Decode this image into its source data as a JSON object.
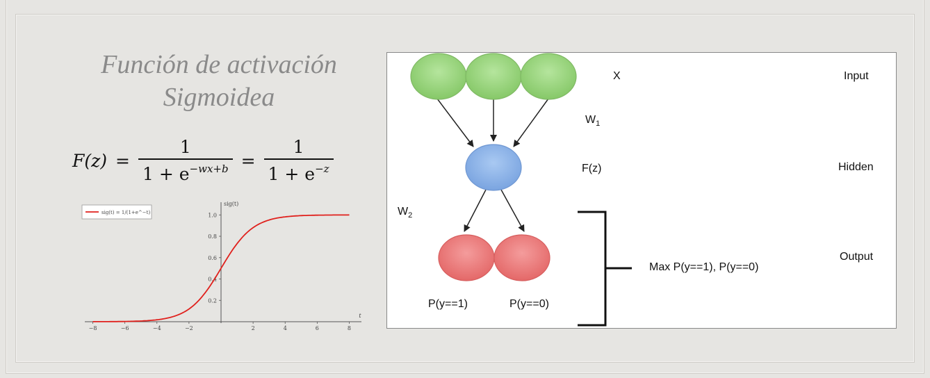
{
  "slide": {
    "title_line1": "Función de activación",
    "title_line2": "Sigmoidea",
    "formula": {
      "lhs": "F(z)",
      "eq": "=",
      "num1": "1",
      "den1_base": "1 + e",
      "den1_exp": "−wx+b",
      "num2": "1",
      "den2_base": "1 + e",
      "den2_exp": "−z"
    }
  },
  "chart_data": {
    "type": "line",
    "title": "",
    "xlabel": "t",
    "ylabel": "sig(t)",
    "xlim": [
      -8.5,
      8.5
    ],
    "ylim": [
      0,
      1.08
    ],
    "x_ticks": [
      -8,
      -6,
      -4,
      -2,
      2,
      4,
      6,
      8
    ],
    "y_ticks": [
      0.2,
      0.4,
      0.6,
      0.8,
      1.0
    ],
    "x_tick_labels": [
      "−8",
      "−6",
      "−4",
      "−2",
      "2",
      "4",
      "6",
      "8"
    ],
    "y_tick_labels": [
      "0.2",
      "0.4",
      "0.6",
      "0.8",
      "1.0"
    ],
    "legend_position": "top-left",
    "series": [
      {
        "name": "sig(t) = 1/(1+e^−t)",
        "color": "#e0201c",
        "x": [
          -8,
          -7,
          -6,
          -5,
          -4,
          -3,
          -2,
          -1,
          0,
          1,
          2,
          3,
          4,
          5,
          6,
          7,
          8
        ],
        "y": [
          0.0003,
          0.0009,
          0.0025,
          0.0067,
          0.018,
          0.047,
          0.119,
          0.269,
          0.5,
          0.731,
          0.881,
          0.953,
          0.982,
          0.993,
          0.998,
          0.999,
          1.0
        ]
      }
    ]
  },
  "diagram": {
    "labels": {
      "x": "X",
      "w1_base": "W",
      "w1_sub": "1",
      "fz": "F(z)",
      "w2_base": "W",
      "w2_sub": "2",
      "input": "Input",
      "hidden": "Hidden",
      "output": "Output",
      "p1": "P(y==1)",
      "p0": "P(y==0)",
      "max": "Max P(y==1), P(y==0)"
    },
    "node_colors": {
      "input": "#9bd67f",
      "hidden": "#8fb5ea",
      "output": "#ef7f7f"
    }
  }
}
